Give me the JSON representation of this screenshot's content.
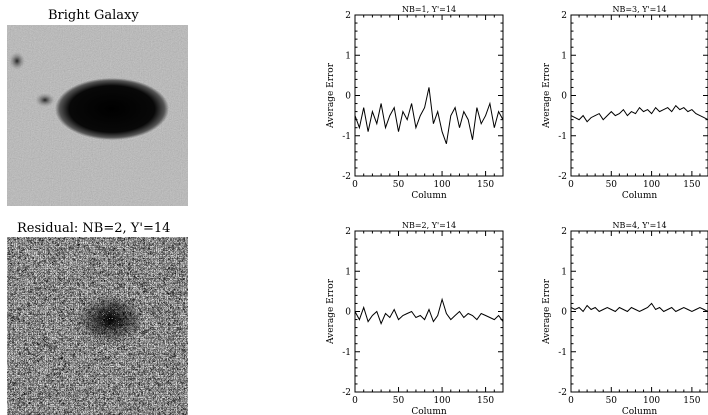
{
  "images": [
    {
      "title": "Bright Galaxy"
    },
    {
      "title": "Residual: NB=2, Y'=14"
    }
  ],
  "chart_data": [
    {
      "type": "line",
      "title": "NB=1, Y'=14",
      "xlabel": "Column",
      "ylabel": "Average Error",
      "xlim": [
        0,
        170
      ],
      "ylim": [
        -2,
        2
      ],
      "xticks": [
        0,
        50,
        100,
        150
      ],
      "yticks": [
        -2,
        -1,
        0,
        1,
        2
      ],
      "x": [
        0,
        5,
        10,
        15,
        20,
        25,
        30,
        35,
        40,
        45,
        50,
        55,
        60,
        65,
        70,
        75,
        80,
        85,
        90,
        95,
        100,
        105,
        110,
        115,
        120,
        125,
        130,
        135,
        140,
        145,
        150,
        155,
        160,
        165,
        170
      ],
      "series": [
        {
          "values": [
            -0.5,
            -0.8,
            -0.3,
            -0.9,
            -0.4,
            -0.7,
            -0.2,
            -0.8,
            -0.5,
            -0.3,
            -0.9,
            -0.4,
            -0.6,
            -0.2,
            -0.8,
            -0.5,
            -0.3,
            0.2,
            -0.7,
            -0.4,
            -0.9,
            -1.2,
            -0.5,
            -0.3,
            -0.8,
            -0.4,
            -0.6,
            -1.1,
            -0.3,
            -0.7,
            -0.5,
            -0.2,
            -0.8,
            -0.4,
            -0.6
          ]
        }
      ]
    },
    {
      "type": "line",
      "title": "NB=3, Y'=14",
      "xlabel": "Column",
      "ylabel": "Average Error",
      "xlim": [
        0,
        170
      ],
      "ylim": [
        -2,
        2
      ],
      "xticks": [
        0,
        50,
        100,
        150
      ],
      "yticks": [
        -2,
        -1,
        0,
        1,
        2
      ],
      "x": [
        0,
        5,
        10,
        15,
        20,
        25,
        30,
        35,
        40,
        45,
        50,
        55,
        60,
        65,
        70,
        75,
        80,
        85,
        90,
        95,
        100,
        105,
        110,
        115,
        120,
        125,
        130,
        135,
        140,
        145,
        150,
        155,
        160,
        165,
        170
      ],
      "series": [
        {
          "values": [
            -0.5,
            -0.55,
            -0.6,
            -0.5,
            -0.65,
            -0.55,
            -0.5,
            -0.45,
            -0.6,
            -0.5,
            -0.4,
            -0.5,
            -0.45,
            -0.35,
            -0.5,
            -0.4,
            -0.45,
            -0.3,
            -0.4,
            -0.35,
            -0.45,
            -0.3,
            -0.4,
            -0.35,
            -0.3,
            -0.4,
            -0.25,
            -0.35,
            -0.3,
            -0.4,
            -0.35,
            -0.45,
            -0.5,
            -0.55,
            -0.6
          ]
        }
      ]
    },
    {
      "type": "line",
      "title": "NB=2, Y'=14",
      "xlabel": "Column",
      "ylabel": "Average Error",
      "xlim": [
        0,
        170
      ],
      "ylim": [
        -2,
        2
      ],
      "xticks": [
        0,
        50,
        100,
        150
      ],
      "yticks": [
        -2,
        -1,
        0,
        1,
        2
      ],
      "x": [
        0,
        5,
        10,
        15,
        20,
        25,
        30,
        35,
        40,
        45,
        50,
        55,
        60,
        65,
        70,
        75,
        80,
        85,
        90,
        95,
        100,
        105,
        110,
        115,
        120,
        125,
        130,
        135,
        140,
        145,
        150,
        155,
        160,
        165,
        170
      ],
      "series": [
        {
          "values": [
            0.0,
            -0.2,
            0.1,
            -0.25,
            -0.1,
            0.0,
            -0.3,
            -0.05,
            -0.15,
            0.05,
            -0.2,
            -0.1,
            -0.05,
            0.0,
            -0.15,
            -0.1,
            -0.2,
            0.05,
            -0.25,
            -0.1,
            0.3,
            -0.05,
            -0.2,
            -0.1,
            0.0,
            -0.15,
            -0.05,
            -0.1,
            -0.2,
            -0.05,
            -0.1,
            -0.15,
            -0.2,
            -0.1,
            -0.25
          ]
        }
      ]
    },
    {
      "type": "line",
      "title": "NB=4, Y'=14",
      "xlabel": "Column",
      "ylabel": "Average Error",
      "xlim": [
        0,
        170
      ],
      "ylim": [
        -2,
        2
      ],
      "xticks": [
        0,
        50,
        100,
        150
      ],
      "yticks": [
        -2,
        -1,
        0,
        1,
        2
      ],
      "x": [
        0,
        5,
        10,
        15,
        20,
        25,
        30,
        35,
        40,
        45,
        50,
        55,
        60,
        65,
        70,
        75,
        80,
        85,
        90,
        95,
        100,
        105,
        110,
        115,
        120,
        125,
        130,
        135,
        140,
        145,
        150,
        155,
        160,
        165,
        170
      ],
      "series": [
        {
          "values": [
            0.1,
            0.05,
            0.1,
            0.0,
            0.15,
            0.05,
            0.1,
            0.0,
            0.05,
            0.1,
            0.05,
            0.0,
            0.1,
            0.05,
            0.0,
            0.1,
            0.05,
            0.0,
            0.05,
            0.1,
            0.2,
            0.05,
            0.1,
            0.0,
            0.05,
            0.1,
            0.0,
            0.05,
            0.1,
            0.05,
            0.0,
            0.05,
            0.1,
            0.05,
            0.0
          ]
        }
      ]
    }
  ]
}
